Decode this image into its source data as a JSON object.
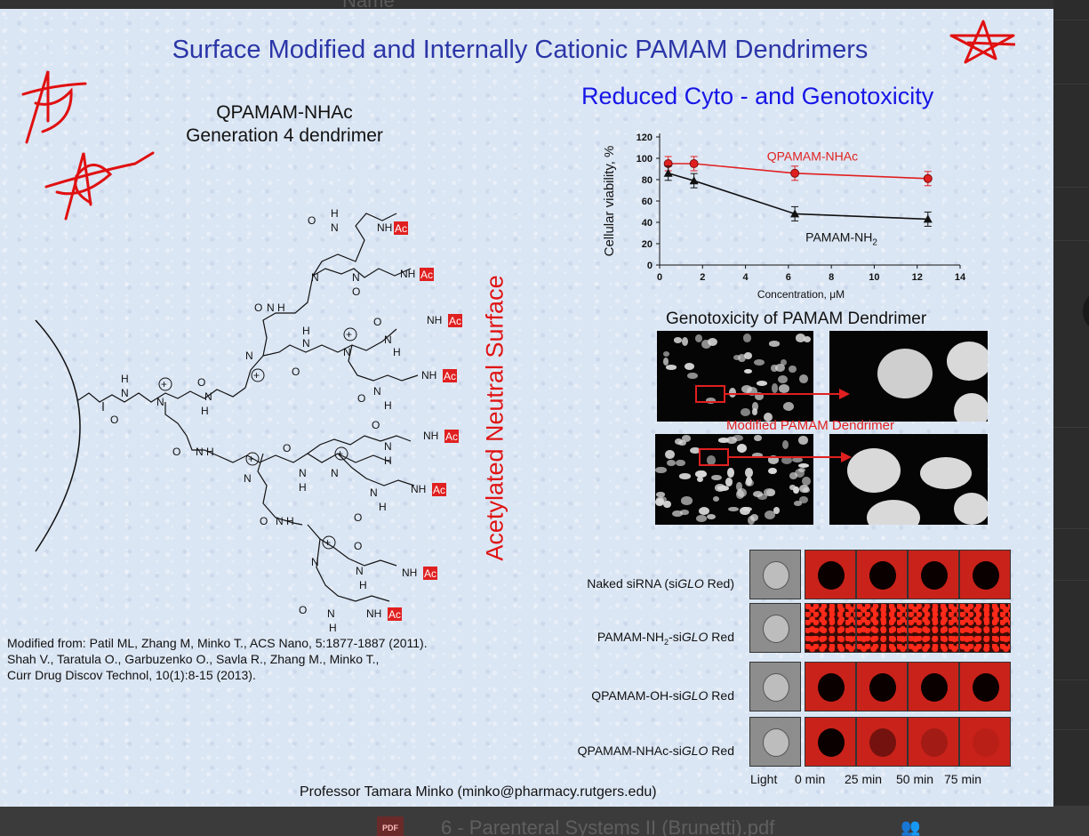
{
  "background": {
    "top_text": "Name",
    "bottom_file": {
      "badge": "PDF",
      "name": "6 - Parenteral Systems II (Brunetti).pdf",
      "shared_icon": "people-icon"
    }
  },
  "slide": {
    "title": "Surface Modified and Internally Cationic PAMAM Dendrimers",
    "subtitle": "Reduced Cyto - and Genotoxicity",
    "molecule_title_line1": "QPAMAM-NHAc",
    "molecule_title_line2": "Generation 4 dendrimer",
    "vertical_label": "Acetylated Neutral Surface",
    "molecule_labels": {
      "h": "H",
      "n": "N",
      "o": "O",
      "nh": "NH",
      "ac": "Ac",
      "plus": "+"
    },
    "citation_line1": "Modified from: Patil ML, Zhang M, Minko T., ACS Nano, 5:1877-1887 (2011).",
    "citation_line2": "Shah V., Taratula O., Garbuzenko O., Savla R., Zhang M., Minko T.,",
    "citation_line3": "Curr Drug Discov Technol, 10(1):8-15 (2013).",
    "genotoxicity_title": "Genotoxicity of PAMAM Dendrimer",
    "modified_label": "Modified PAMAM  Dendrimer",
    "uptake_rows": [
      {
        "prefix": "Naked siRNA (si",
        "italic": "GLO",
        "suffix": " Red)"
      },
      {
        "prefix": "PAMAM-NH",
        "sub": "2",
        "prefix2": "-si",
        "italic": "GLO",
        "suffix": " Red"
      },
      {
        "prefix": "QPAMAM-OH-si",
        "italic": "GLO",
        "suffix": " Red"
      },
      {
        "prefix": "QPAMAM-NHAc-si",
        "italic": "GLO",
        "suffix": " Red"
      }
    ],
    "time_labels": [
      "Light",
      "0 min",
      "25 min",
      "50 min",
      "75 min"
    ],
    "professor": "Professor Tamara Minko (minko@pharmacy.rutgers.edu)"
  },
  "chart_data": {
    "type": "line",
    "title": "",
    "xlabel": "Concentration, μM",
    "ylabel": "Cellular viability, %",
    "xlim": [
      0,
      14
    ],
    "ylim": [
      0,
      120
    ],
    "xticks": [
      "0",
      "2",
      "4",
      "6",
      "8",
      "10",
      "12",
      "14"
    ],
    "yticks": [
      "0",
      "20",
      "40",
      "60",
      "80",
      "100",
      "120"
    ],
    "series": [
      {
        "name": "QPAMAM-NHAc",
        "color": "#e02020",
        "marker": "circle",
        "x": [
          0.4,
          1.6,
          6.3,
          12.5
        ],
        "y": [
          95,
          95,
          86,
          81
        ]
      },
      {
        "name": "PAMAM-NH2",
        "label_main": "PAMAM-NH",
        "label_sub": "2",
        "color": "#111111",
        "marker": "triangle",
        "x": [
          0.4,
          1.6,
          6.3,
          12.5
        ],
        "y": [
          86,
          79,
          48,
          43
        ]
      }
    ]
  },
  "colors": {
    "title": "#2b36a8",
    "subtitle": "#1616e6",
    "accent_red": "#e02020"
  }
}
